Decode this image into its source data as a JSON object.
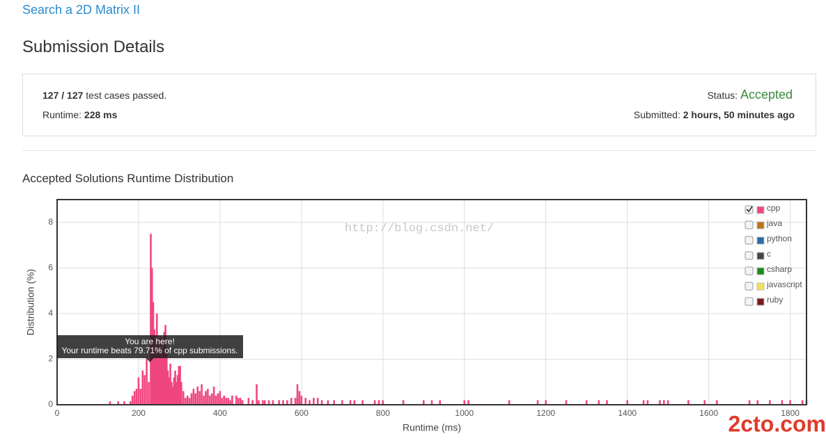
{
  "problem_link": "Search a 2D Matrix II",
  "heading": "Submission Details",
  "summary": {
    "passed": "127",
    "separator": "/",
    "total": "127",
    "passed_text": "test cases passed.",
    "runtime_label": "Runtime:",
    "runtime": "228 ms",
    "status_label": "Status:",
    "status": "Accepted",
    "submitted_label": "Submitted:",
    "submitted": "2 hours, 50 minutes ago"
  },
  "chart_heading": "Accepted Solutions Runtime Distribution",
  "watermarks": [
    "http://blog.csdn.net/",
    "2cto.com"
  ],
  "chart_data": {
    "type": "bar",
    "x_label": "Runtime (ms)",
    "y_label": "Distribution (%)",
    "xlim": [
      0,
      1840
    ],
    "ylim": [
      0,
      9
    ],
    "xticks": [
      0,
      200,
      400,
      600,
      800,
      1000,
      1200,
      1400,
      1600,
      1800
    ],
    "yticks": [
      0,
      2,
      4,
      6,
      8
    ],
    "grid": true,
    "legend": "top-right",
    "annotation": {
      "x": 228,
      "title": "You are here!",
      "text": "Your runtime beats 79.71% of cpp submissions."
    },
    "x": [
      130,
      150,
      165,
      180,
      185,
      190,
      195,
      200,
      205,
      210,
      215,
      220,
      225,
      230,
      233,
      236,
      239,
      242,
      245,
      248,
      251,
      254,
      257,
      260,
      263,
      266,
      269,
      272,
      275,
      278,
      281,
      284,
      287,
      290,
      293,
      296,
      299,
      302,
      305,
      310,
      315,
      320,
      325,
      330,
      335,
      340,
      345,
      350,
      355,
      360,
      365,
      370,
      375,
      380,
      385,
      390,
      395,
      400,
      405,
      410,
      415,
      420,
      425,
      430,
      440,
      445,
      450,
      455,
      470,
      480,
      490,
      495,
      505,
      510,
      520,
      530,
      545,
      555,
      565,
      575,
      585,
      590,
      595,
      600,
      610,
      620,
      630,
      640,
      650,
      665,
      680,
      700,
      720,
      730,
      750,
      780,
      790,
      800,
      850,
      900,
      920,
      940,
      1000,
      1010,
      1110,
      1180,
      1200,
      1250,
      1300,
      1330,
      1350,
      1400,
      1440,
      1450,
      1480,
      1490,
      1500,
      1550,
      1590,
      1620,
      1700,
      1720,
      1750,
      1780,
      1800,
      1830,
      1840
    ],
    "series": [
      {
        "name": "cpp",
        "color": "#f0467f",
        "checked": true,
        "values": [
          0.15,
          0.15,
          0.15,
          0.15,
          0.4,
          0.6,
          0.7,
          1.2,
          0.7,
          1.5,
          1.3,
          2.1,
          1.0,
          7.5,
          6.0,
          4.5,
          3.3,
          2.5,
          4.0,
          2.8,
          2.2,
          3.0,
          2.2,
          2.5,
          3.2,
          3.5,
          2.4,
          1.5,
          1.2,
          1.8,
          1.0,
          0.8,
          1.2,
          1.5,
          1.0,
          1.3,
          1.7,
          1.7,
          1.0,
          0.6,
          0.3,
          0.4,
          0.3,
          0.5,
          0.7,
          0.5,
          0.8,
          0.6,
          0.9,
          0.4,
          0.6,
          0.7,
          0.4,
          0.5,
          0.8,
          0.4,
          0.5,
          0.6,
          0.3,
          0.4,
          0.3,
          0.3,
          0.2,
          0.4,
          0.4,
          0.3,
          0.3,
          0.2,
          0.3,
          0.2,
          0.9,
          0.2,
          0.2,
          0.2,
          0.2,
          0.2,
          0.2,
          0.2,
          0.2,
          0.3,
          0.3,
          0.9,
          0.6,
          0.4,
          0.3,
          0.2,
          0.3,
          0.3,
          0.2,
          0.2,
          0.2,
          0.2,
          0.2,
          0.2,
          0.2,
          0.2,
          0.2,
          0.2,
          0.2,
          0.2,
          0.2,
          0.2,
          0.2,
          0.2,
          0.2,
          0.2,
          0.2,
          0.2,
          0.2,
          0.2,
          0.2,
          0.2,
          0.2,
          0.2,
          0.2,
          0.2,
          0.2,
          0.2,
          0.2,
          0.2,
          0.2,
          0.2,
          0.2,
          0.2,
          0.2,
          0.2,
          0.2
        ]
      },
      {
        "name": "java",
        "color": "#b8741a",
        "checked": false
      },
      {
        "name": "python",
        "color": "#2a6aa7",
        "checked": false
      },
      {
        "name": "c",
        "color": "#444444",
        "checked": false
      },
      {
        "name": "csharp",
        "color": "#1a8a1a",
        "checked": false
      },
      {
        "name": "javascript",
        "color": "#f2e35a",
        "checked": false
      },
      {
        "name": "ruby",
        "color": "#7a1a1a",
        "checked": false
      }
    ]
  }
}
